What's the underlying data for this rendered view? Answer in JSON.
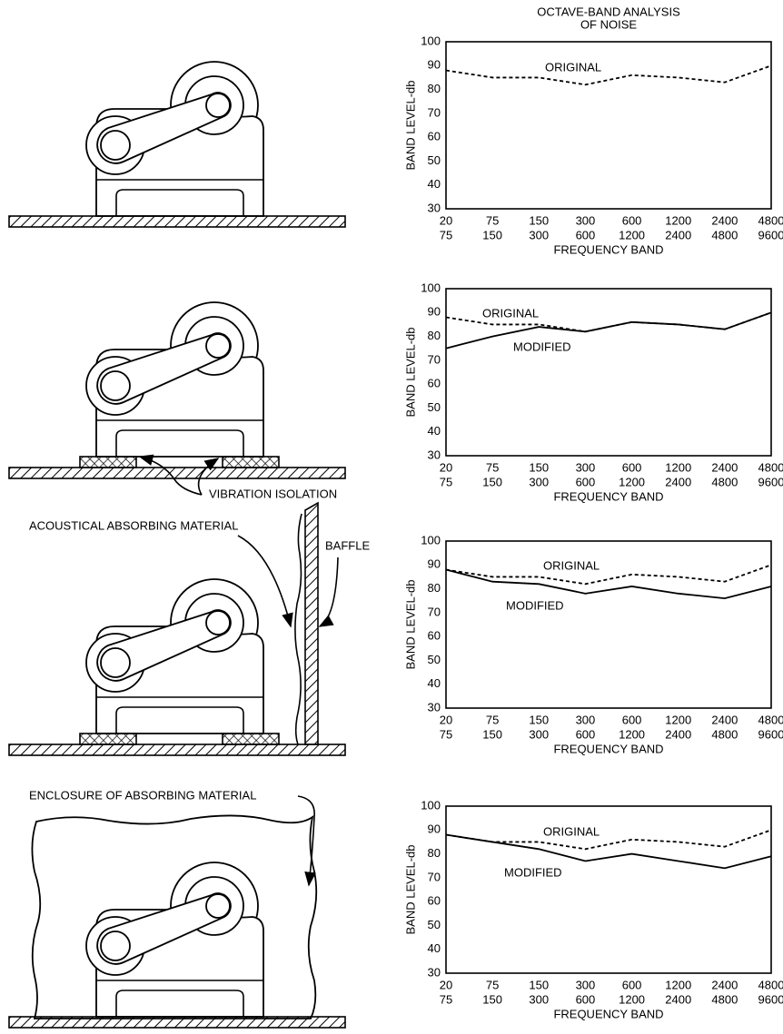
{
  "chart_data": [
    {
      "type": "line",
      "title": [
        "OCTAVE-BAND ANALYSIS",
        "OF NOISE"
      ],
      "ylabel": "BAND LEVEL-db",
      "xlabel": "FREQUENCY BAND",
      "categories": [
        [
          "20",
          "75"
        ],
        [
          "75",
          "150"
        ],
        [
          "150",
          "300"
        ],
        [
          "300",
          "600"
        ],
        [
          "600",
          "1200"
        ],
        [
          "1200",
          "2400"
        ],
        [
          "2400",
          "4800"
        ],
        [
          "4800",
          "9600"
        ]
      ],
      "ylim": [
        30,
        100
      ],
      "yticks": [
        30,
        40,
        50,
        60,
        70,
        80,
        90,
        100
      ],
      "series": [
        {
          "name": "ORIGINAL",
          "color": "#000000",
          "dashed": true,
          "values": [
            88,
            85,
            85,
            82,
            86,
            85,
            83,
            90
          ]
        }
      ]
    },
    {
      "type": "line",
      "ylabel": "BAND LEVEL-db",
      "xlabel": "FREQUENCY BAND",
      "categories": [
        [
          "20",
          "75"
        ],
        [
          "75",
          "150"
        ],
        [
          "150",
          "300"
        ],
        [
          "300",
          "600"
        ],
        [
          "600",
          "1200"
        ],
        [
          "1200",
          "2400"
        ],
        [
          "2400",
          "4800"
        ],
        [
          "4800",
          "9600"
        ]
      ],
      "ylim": [
        30,
        100
      ],
      "yticks": [
        30,
        40,
        50,
        60,
        70,
        80,
        90,
        100
      ],
      "series": [
        {
          "name": "ORIGINAL",
          "color": "#000000",
          "dashed": true,
          "values": [
            88,
            85,
            85,
            82,
            86,
            85,
            83,
            90
          ]
        },
        {
          "name": "MODIFIED",
          "color": "#000000",
          "dashed": false,
          "values": [
            75,
            80,
            84,
            82,
            86,
            85,
            83,
            90
          ]
        }
      ]
    },
    {
      "type": "line",
      "ylabel": "BAND LEVEL-db",
      "xlabel": "FREQUENCY BAND",
      "categories": [
        [
          "20",
          "75"
        ],
        [
          "75",
          "150"
        ],
        [
          "150",
          "300"
        ],
        [
          "300",
          "600"
        ],
        [
          "600",
          "1200"
        ],
        [
          "1200",
          "2400"
        ],
        [
          "2400",
          "4800"
        ],
        [
          "4800",
          "9600"
        ]
      ],
      "ylim": [
        30,
        100
      ],
      "yticks": [
        30,
        40,
        50,
        60,
        70,
        80,
        90,
        100
      ],
      "series": [
        {
          "name": "ORIGINAL",
          "color": "#000000",
          "dashed": true,
          "values": [
            88,
            85,
            85,
            82,
            86,
            85,
            83,
            90
          ]
        },
        {
          "name": "MODIFIED",
          "color": "#000000",
          "dashed": false,
          "values": [
            88,
            83,
            82,
            78,
            81,
            78,
            76,
            81
          ]
        }
      ]
    },
    {
      "type": "line",
      "ylabel": "BAND LEVEL-db",
      "xlabel": "FREQUENCY BAND",
      "categories": [
        [
          "20",
          "75"
        ],
        [
          "75",
          "150"
        ],
        [
          "150",
          "300"
        ],
        [
          "300",
          "600"
        ],
        [
          "600",
          "1200"
        ],
        [
          "1200",
          "2400"
        ],
        [
          "2400",
          "4800"
        ],
        [
          "4800",
          "9600"
        ]
      ],
      "ylim": [
        30,
        100
      ],
      "yticks": [
        30,
        40,
        50,
        60,
        70,
        80,
        90,
        100
      ],
      "series": [
        {
          "name": "ORIGINAL",
          "color": "#000000",
          "dashed": true,
          "values": [
            88,
            85,
            85,
            82,
            86,
            85,
            83,
            90
          ]
        },
        {
          "name": "MODIFIED",
          "color": "#000000",
          "dashed": false,
          "values": [
            88,
            85,
            82,
            77,
            80,
            77,
            74,
            79
          ]
        }
      ]
    }
  ],
  "diagrams": {
    "labels": [
      "VIBRATION ISOLATION",
      "ACOUSTICAL ABSORBING MATERIAL",
      "BAFFLE",
      "ENCLOSURE OF ABSORBING MATERIAL"
    ]
  }
}
